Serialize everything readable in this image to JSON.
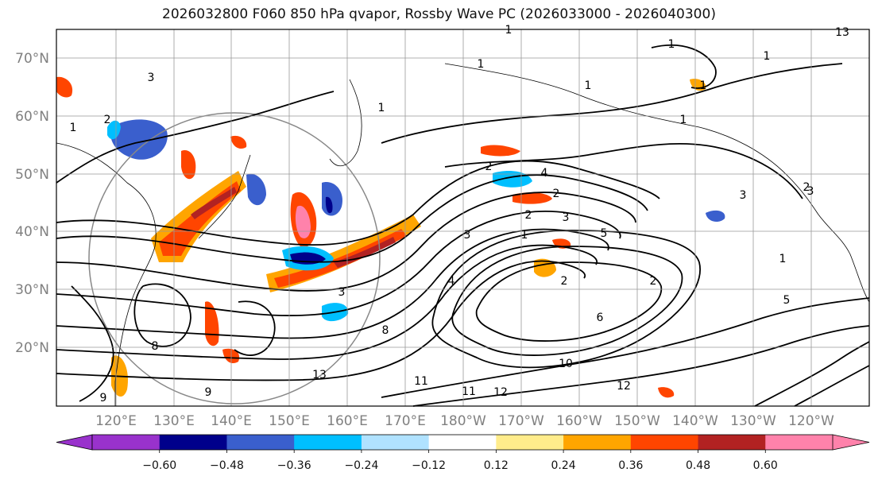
{
  "title": "2026032800 F060 850 hPa qvapor, Rossby Wave PC (2026033000 - 2026040300)",
  "map": {
    "lat_labels": [
      "70°N",
      "60°N",
      "50°N",
      "40°N",
      "30°N",
      "20°N"
    ],
    "lon_labels": [
      "120°E",
      "130°E",
      "140°E",
      "150°E",
      "160°E",
      "170°E",
      "180°W",
      "170°W",
      "160°W",
      "150°W",
      "140°W",
      "130°W",
      "120°W"
    ],
    "contour_labels": [
      "1",
      "1",
      "1",
      "1",
      "1",
      "1",
      "2",
      "3",
      "2",
      "4",
      "2",
      "1",
      "3",
      "2",
      "1",
      "3",
      "5",
      "2",
      "2",
      "3",
      "6",
      "4",
      "8",
      "9",
      "10",
      "11",
      "11",
      "12",
      "12",
      "13",
      "13",
      "1",
      "1",
      "3",
      "2",
      "5",
      "3",
      "1",
      "8",
      "9"
    ]
  },
  "colorbar": {
    "colors": [
      "#9932cc",
      "#00008b",
      "#3a5fcd",
      "#00bfff",
      "#b0e2ff",
      "#ffffff",
      "#ffec8b",
      "#ffa500",
      "#ff4500",
      "#b22222",
      "#ff82ab"
    ],
    "under_color": "#9932cc",
    "over_color": "#ff82ab",
    "tick_labels": [
      "−0.60",
      "−0.48",
      "−0.36",
      "−0.24",
      "−0.12",
      "0.12",
      "0.24",
      "0.36",
      "0.48",
      "0.60"
    ]
  }
}
